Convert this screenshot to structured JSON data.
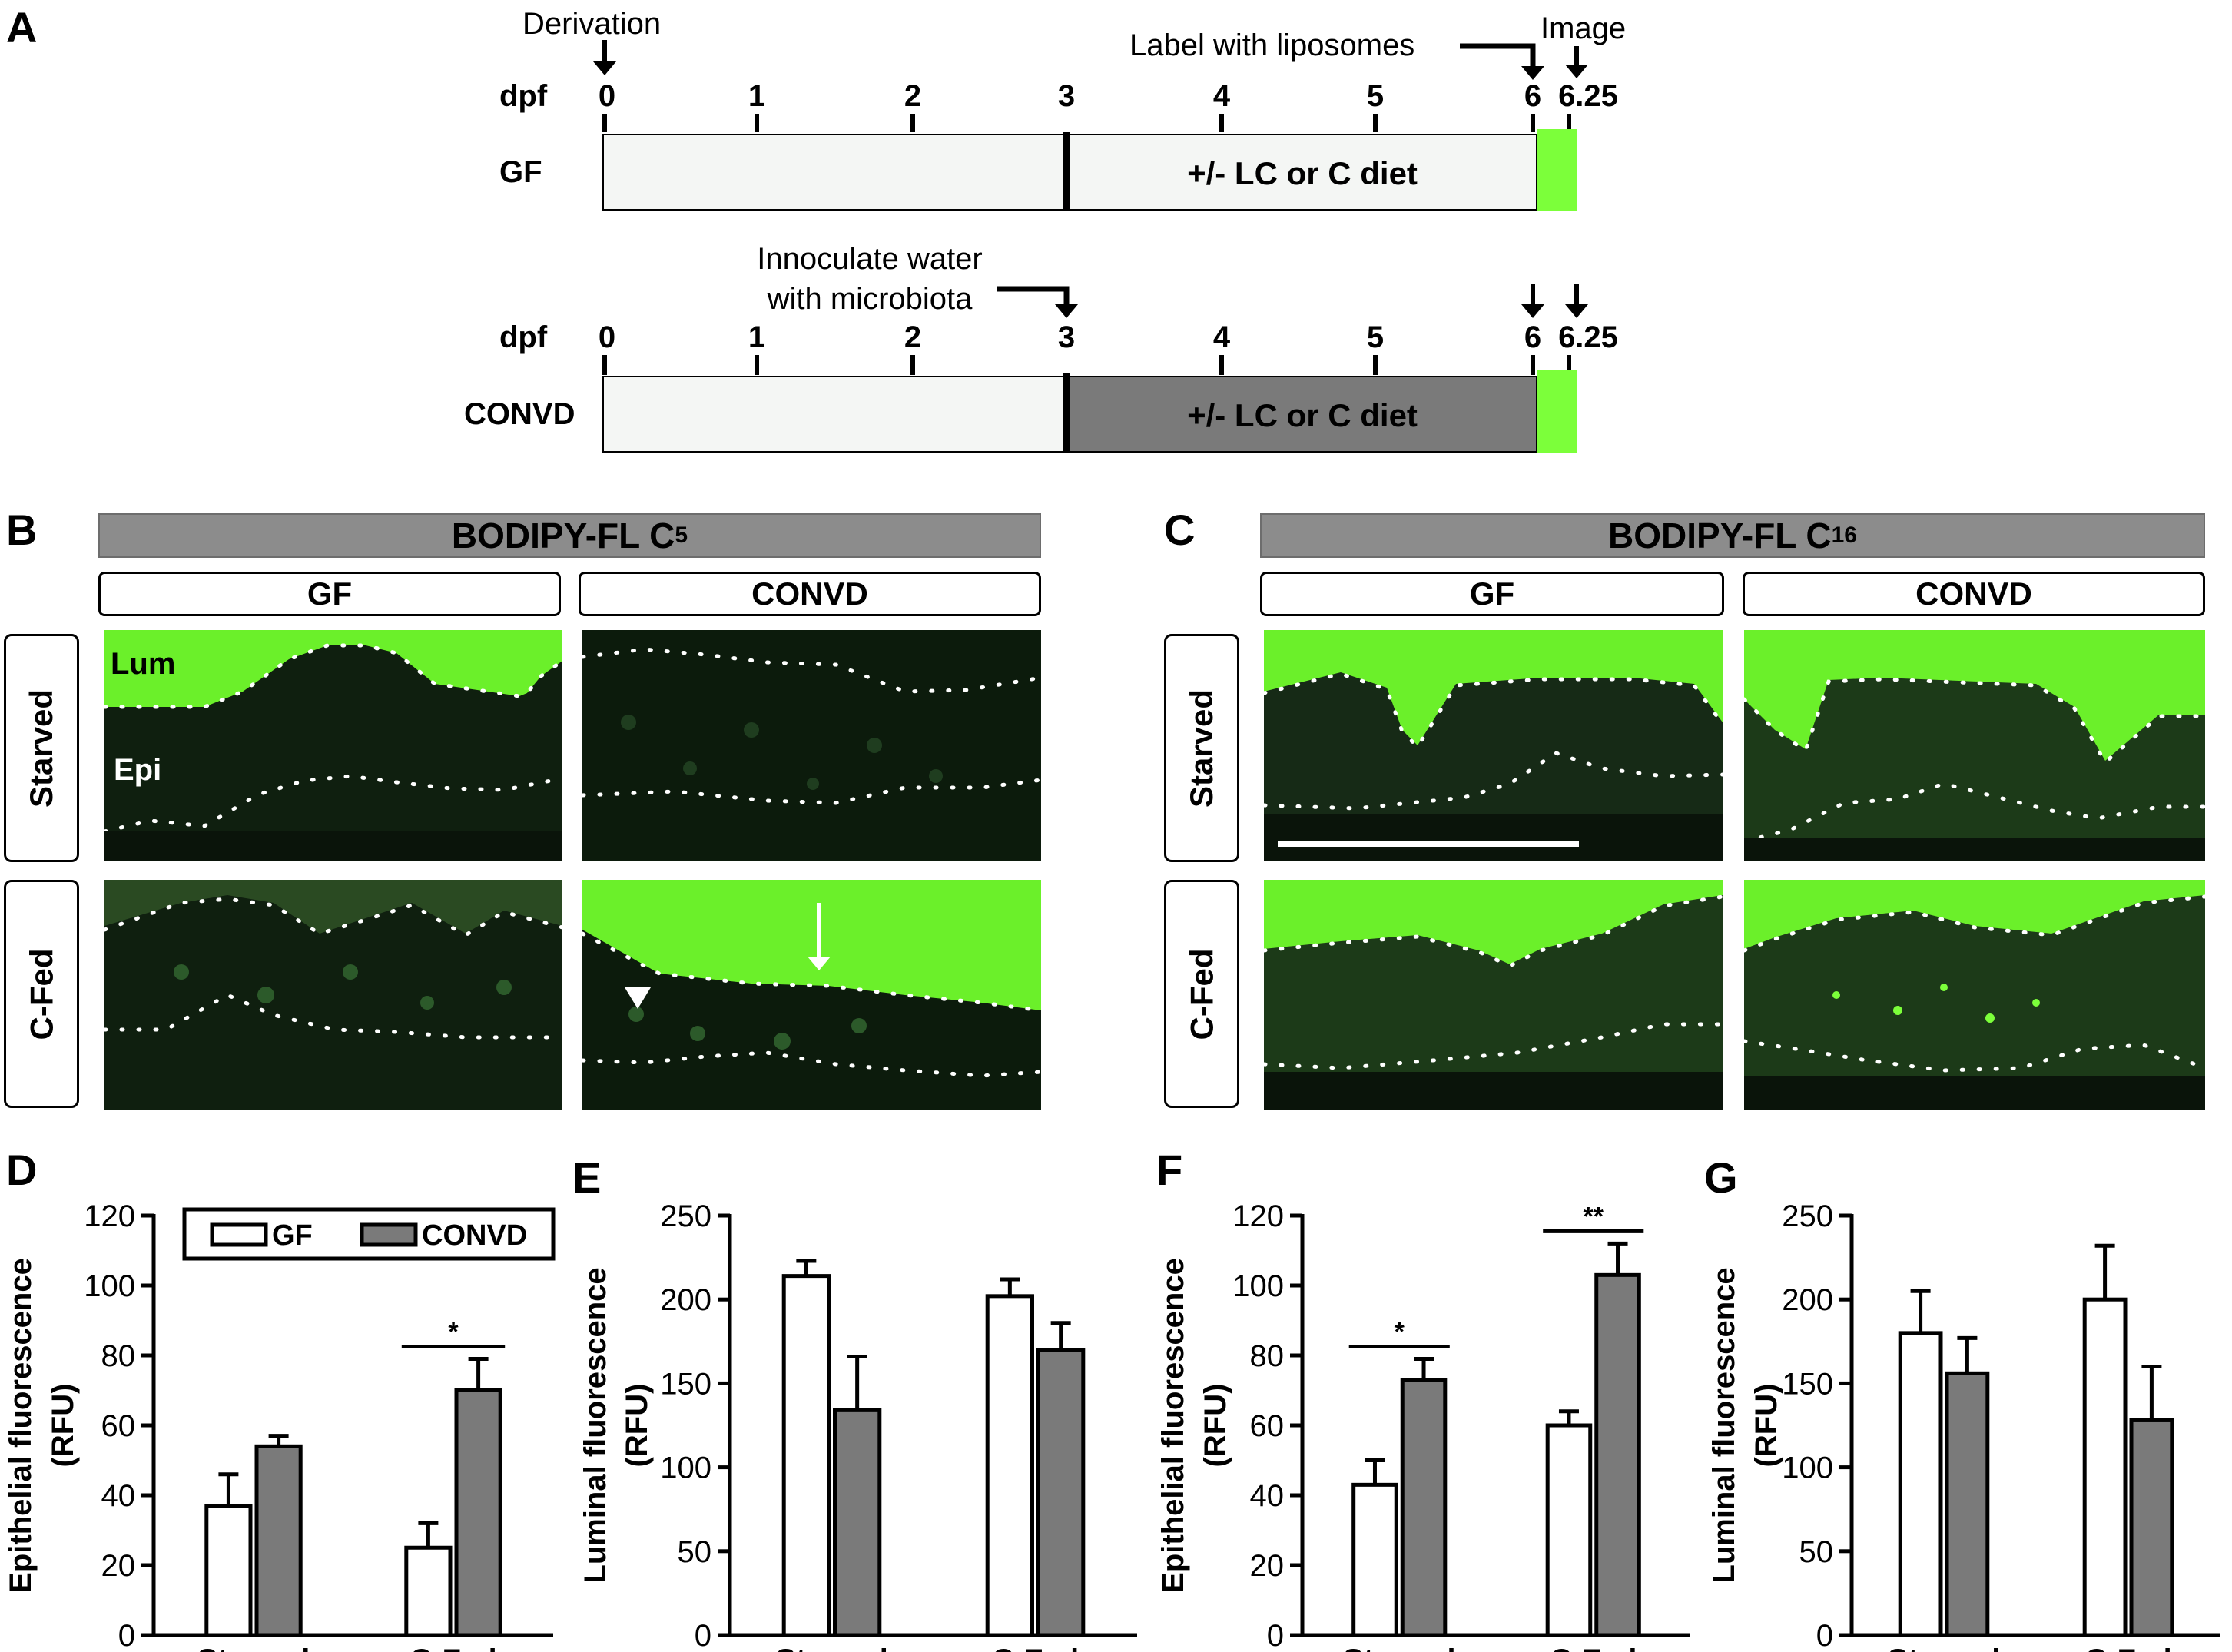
{
  "panel_letters": {
    "a": "A",
    "b": "B",
    "c": "C",
    "d": "D",
    "e": "E",
    "f": "F",
    "g": "G"
  },
  "timeline": {
    "dpf_label": "dpf",
    "ticks": [
      "0",
      "1",
      "2",
      "3",
      "4",
      "5",
      "6",
      "6.25"
    ],
    "derivation_label": "Derivation",
    "liposome_label": "Label with liposomes",
    "image_label": "Image",
    "inoculate_line1": "Innoculate water",
    "inoculate_line2": "with microbiota",
    "gf_row_label": "GF",
    "convd_row_label": "CONVD",
    "diet_label": "+/- LC or C diet",
    "colors": {
      "pre_period": "#f4f6f4",
      "gf_diet": "#f4f6f4",
      "convd_diet": "#7a7a7a",
      "image_band": "#7cff3a"
    }
  },
  "panel_b": {
    "title": "BODIPY-FL C5",
    "title_main": "BODIPY-FL C",
    "title_sub": "5",
    "col_gf": "GF",
    "col_convd": "CONVD",
    "row_starved": "Starved",
    "row_cfed": "C-Fed",
    "lum_label": "Lum",
    "epi_label": "Epi"
  },
  "panel_c": {
    "title": "BODIPY-FL C16",
    "title_main": "BODIPY-FL C",
    "title_sub": "16",
    "col_gf": "GF",
    "col_convd": "CONVD",
    "row_starved": "Starved",
    "row_cfed": "C-Fed"
  },
  "chart_data": [
    {
      "panel": "D",
      "type": "bar",
      "categories": [
        "Starved",
        "C-Fed"
      ],
      "series": [
        {
          "name": "GF",
          "values": [
            37,
            25
          ],
          "errors": [
            9,
            7
          ],
          "color": "#ffffff"
        },
        {
          "name": "CONVD",
          "values": [
            54,
            70
          ],
          "errors": [
            3,
            9
          ],
          "color": "#7a7a7a"
        }
      ],
      "ylabel_line1": "Epithelial fluorescence",
      "ylabel_line2": "(RFU)",
      "ylim": [
        0,
        120
      ],
      "yticks": [
        "0",
        "20",
        "40",
        "60",
        "80",
        "100",
        "120"
      ],
      "significance": [
        {
          "category": "C-Fed",
          "label": "*"
        }
      ],
      "legend": "top-center"
    },
    {
      "panel": "E",
      "type": "bar",
      "categories": [
        "Starved",
        "C-Fed"
      ],
      "series": [
        {
          "name": "GF",
          "values": [
            214,
            202
          ],
          "errors": [
            9,
            10
          ],
          "color": "#ffffff"
        },
        {
          "name": "CONVD",
          "values": [
            134,
            170
          ],
          "errors": [
            32,
            16
          ],
          "color": "#7a7a7a"
        }
      ],
      "ylabel_line1": "Luminal fluorescence",
      "ylabel_line2": "(RFU)",
      "ylim": [
        0,
        250
      ],
      "yticks": [
        "0",
        "50",
        "100",
        "150",
        "200",
        "250"
      ],
      "significance": []
    },
    {
      "panel": "F",
      "type": "bar",
      "categories": [
        "Starved",
        "C-Fed"
      ],
      "series": [
        {
          "name": "GF",
          "values": [
            43,
            60
          ],
          "errors": [
            7,
            4
          ],
          "color": "#ffffff"
        },
        {
          "name": "CONVD",
          "values": [
            73,
            103
          ],
          "errors": [
            6,
            9
          ],
          "color": "#7a7a7a"
        }
      ],
      "ylabel_line1": "Epithelial fluorescence",
      "ylabel_line2": "(RFU)",
      "ylim": [
        0,
        120
      ],
      "yticks": [
        "0",
        "20",
        "40",
        "60",
        "80",
        "100",
        "120"
      ],
      "significance": [
        {
          "category": "Starved",
          "label": "*"
        },
        {
          "category": "C-Fed",
          "label": "**"
        }
      ]
    },
    {
      "panel": "G",
      "type": "bar",
      "categories": [
        "Starved",
        "C-Fed"
      ],
      "series": [
        {
          "name": "GF",
          "values": [
            180,
            200
          ],
          "errors": [
            25,
            32
          ],
          "color": "#ffffff"
        },
        {
          "name": "CONVD",
          "values": [
            156,
            128
          ],
          "errors": [
            21,
            32
          ],
          "color": "#7a7a7a"
        }
      ],
      "ylabel_line1": "Luminal fluorescence",
      "ylabel_line2": "(RFU)",
      "ylim": [
        0,
        250
      ],
      "yticks": [
        "0",
        "50",
        "100",
        "150",
        "200",
        "250"
      ],
      "significance": []
    }
  ]
}
